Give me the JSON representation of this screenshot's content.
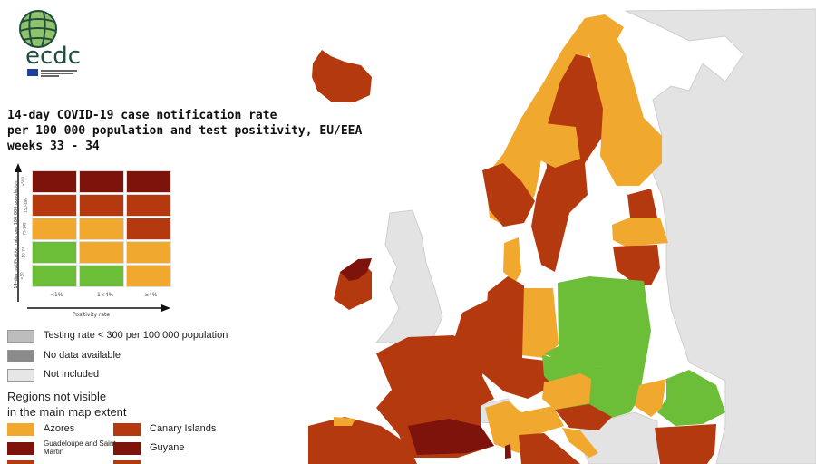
{
  "logo": {
    "text": "ecdc",
    "subtext": "EUROPEAN CENTRE FOR DISEASE PREVENTION AND CONTROL"
  },
  "title": {
    "line1": "14-day COVID-19 case notification rate",
    "line2": "per 100 000 population and test positivity, EU/EEA",
    "line3": "weeks 33 - 34"
  },
  "matrix": {
    "y_axis_label": "14-day notification rate per 100 000 population",
    "x_axis_label": "Positivity rate",
    "row_labels": [
      "≥500",
      "150-499",
      "75-149",
      "50-74",
      "<50"
    ],
    "col_labels": [
      "<1%",
      "1<4%",
      "≥4%"
    ],
    "cells": [
      [
        "dark_red",
        "dark_red",
        "dark_red"
      ],
      [
        "red",
        "red",
        "red"
      ],
      [
        "orange",
        "orange",
        "red"
      ],
      [
        "green",
        "orange",
        "orange"
      ],
      [
        "green",
        "green",
        "orange"
      ]
    ]
  },
  "colors": {
    "dark_red": "#7d130a",
    "red": "#b5390f",
    "orange": "#f0a92e",
    "green": "#6cbd38",
    "testing_low": "#bdbdbd",
    "no_data": "#8a8a8a",
    "not_included": "#e6e6e6",
    "sea": "#ffffff"
  },
  "legend": {
    "items": [
      {
        "label": "Testing rate < 300 per 100 000 population",
        "color": "#bdbdbd"
      },
      {
        "label": "No data available",
        "color": "#8a8a8a"
      },
      {
        "label": "Not included",
        "color": "#e6e6e6"
      }
    ],
    "regions_heading_1": "Regions not visible",
    "regions_heading_2": "in the main map extent",
    "regions": [
      {
        "label": "Azores",
        "color": "#f0a92e"
      },
      {
        "label": "Canary Islands",
        "color": "#b5390f"
      },
      {
        "label": "Guadeloupe and Saint Martin",
        "color": "#7d130a"
      },
      {
        "label": "Guyane",
        "color": "#7d130a"
      }
    ]
  }
}
